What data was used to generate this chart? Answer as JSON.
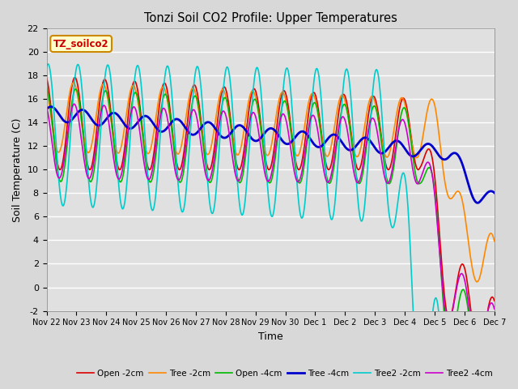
{
  "title": "Tonzi Soil CO2 Profile: Upper Temperatures",
  "xlabel": "Time",
  "ylabel": "Soil Temperature (C)",
  "ylim": [
    -2,
    22
  ],
  "background_color": "#d8d8d8",
  "plot_bg_color": "#e0e0e0",
  "annotation_text": "TZ_soilco2",
  "annotation_color": "#cc0000",
  "annotation_bg": "#ffffcc",
  "annotation_border": "#cc8800",
  "series": [
    {
      "label": "Open -2cm",
      "color": "#dd0000",
      "lw": 1.2
    },
    {
      "label": "Tree -2cm",
      "color": "#ff8800",
      "lw": 1.2
    },
    {
      "label": "Open -4cm",
      "color": "#00bb00",
      "lw": 1.2
    },
    {
      "label": "Tree -4cm",
      "color": "#0000cc",
      "lw": 2.0
    },
    {
      "label": "Tree2 -2cm",
      "color": "#00cccc",
      "lw": 1.2
    },
    {
      "label": "Tree2 -4cm",
      "color": "#cc00cc",
      "lw": 1.2
    }
  ],
  "xtick_labels": [
    "Nov 22",
    "Nov 23",
    "Nov 24",
    "Nov 25",
    "Nov 26",
    "Nov 27",
    "Nov 28",
    "Nov 29",
    "Nov 30",
    "Dec 1",
    "Dec 2",
    "Dec 3",
    "Dec 4",
    "Dec 5",
    "Dec 6",
    "Dec 7"
  ],
  "ytick_values": [
    -2,
    0,
    2,
    4,
    6,
    8,
    10,
    12,
    14,
    16,
    18,
    20,
    22
  ]
}
